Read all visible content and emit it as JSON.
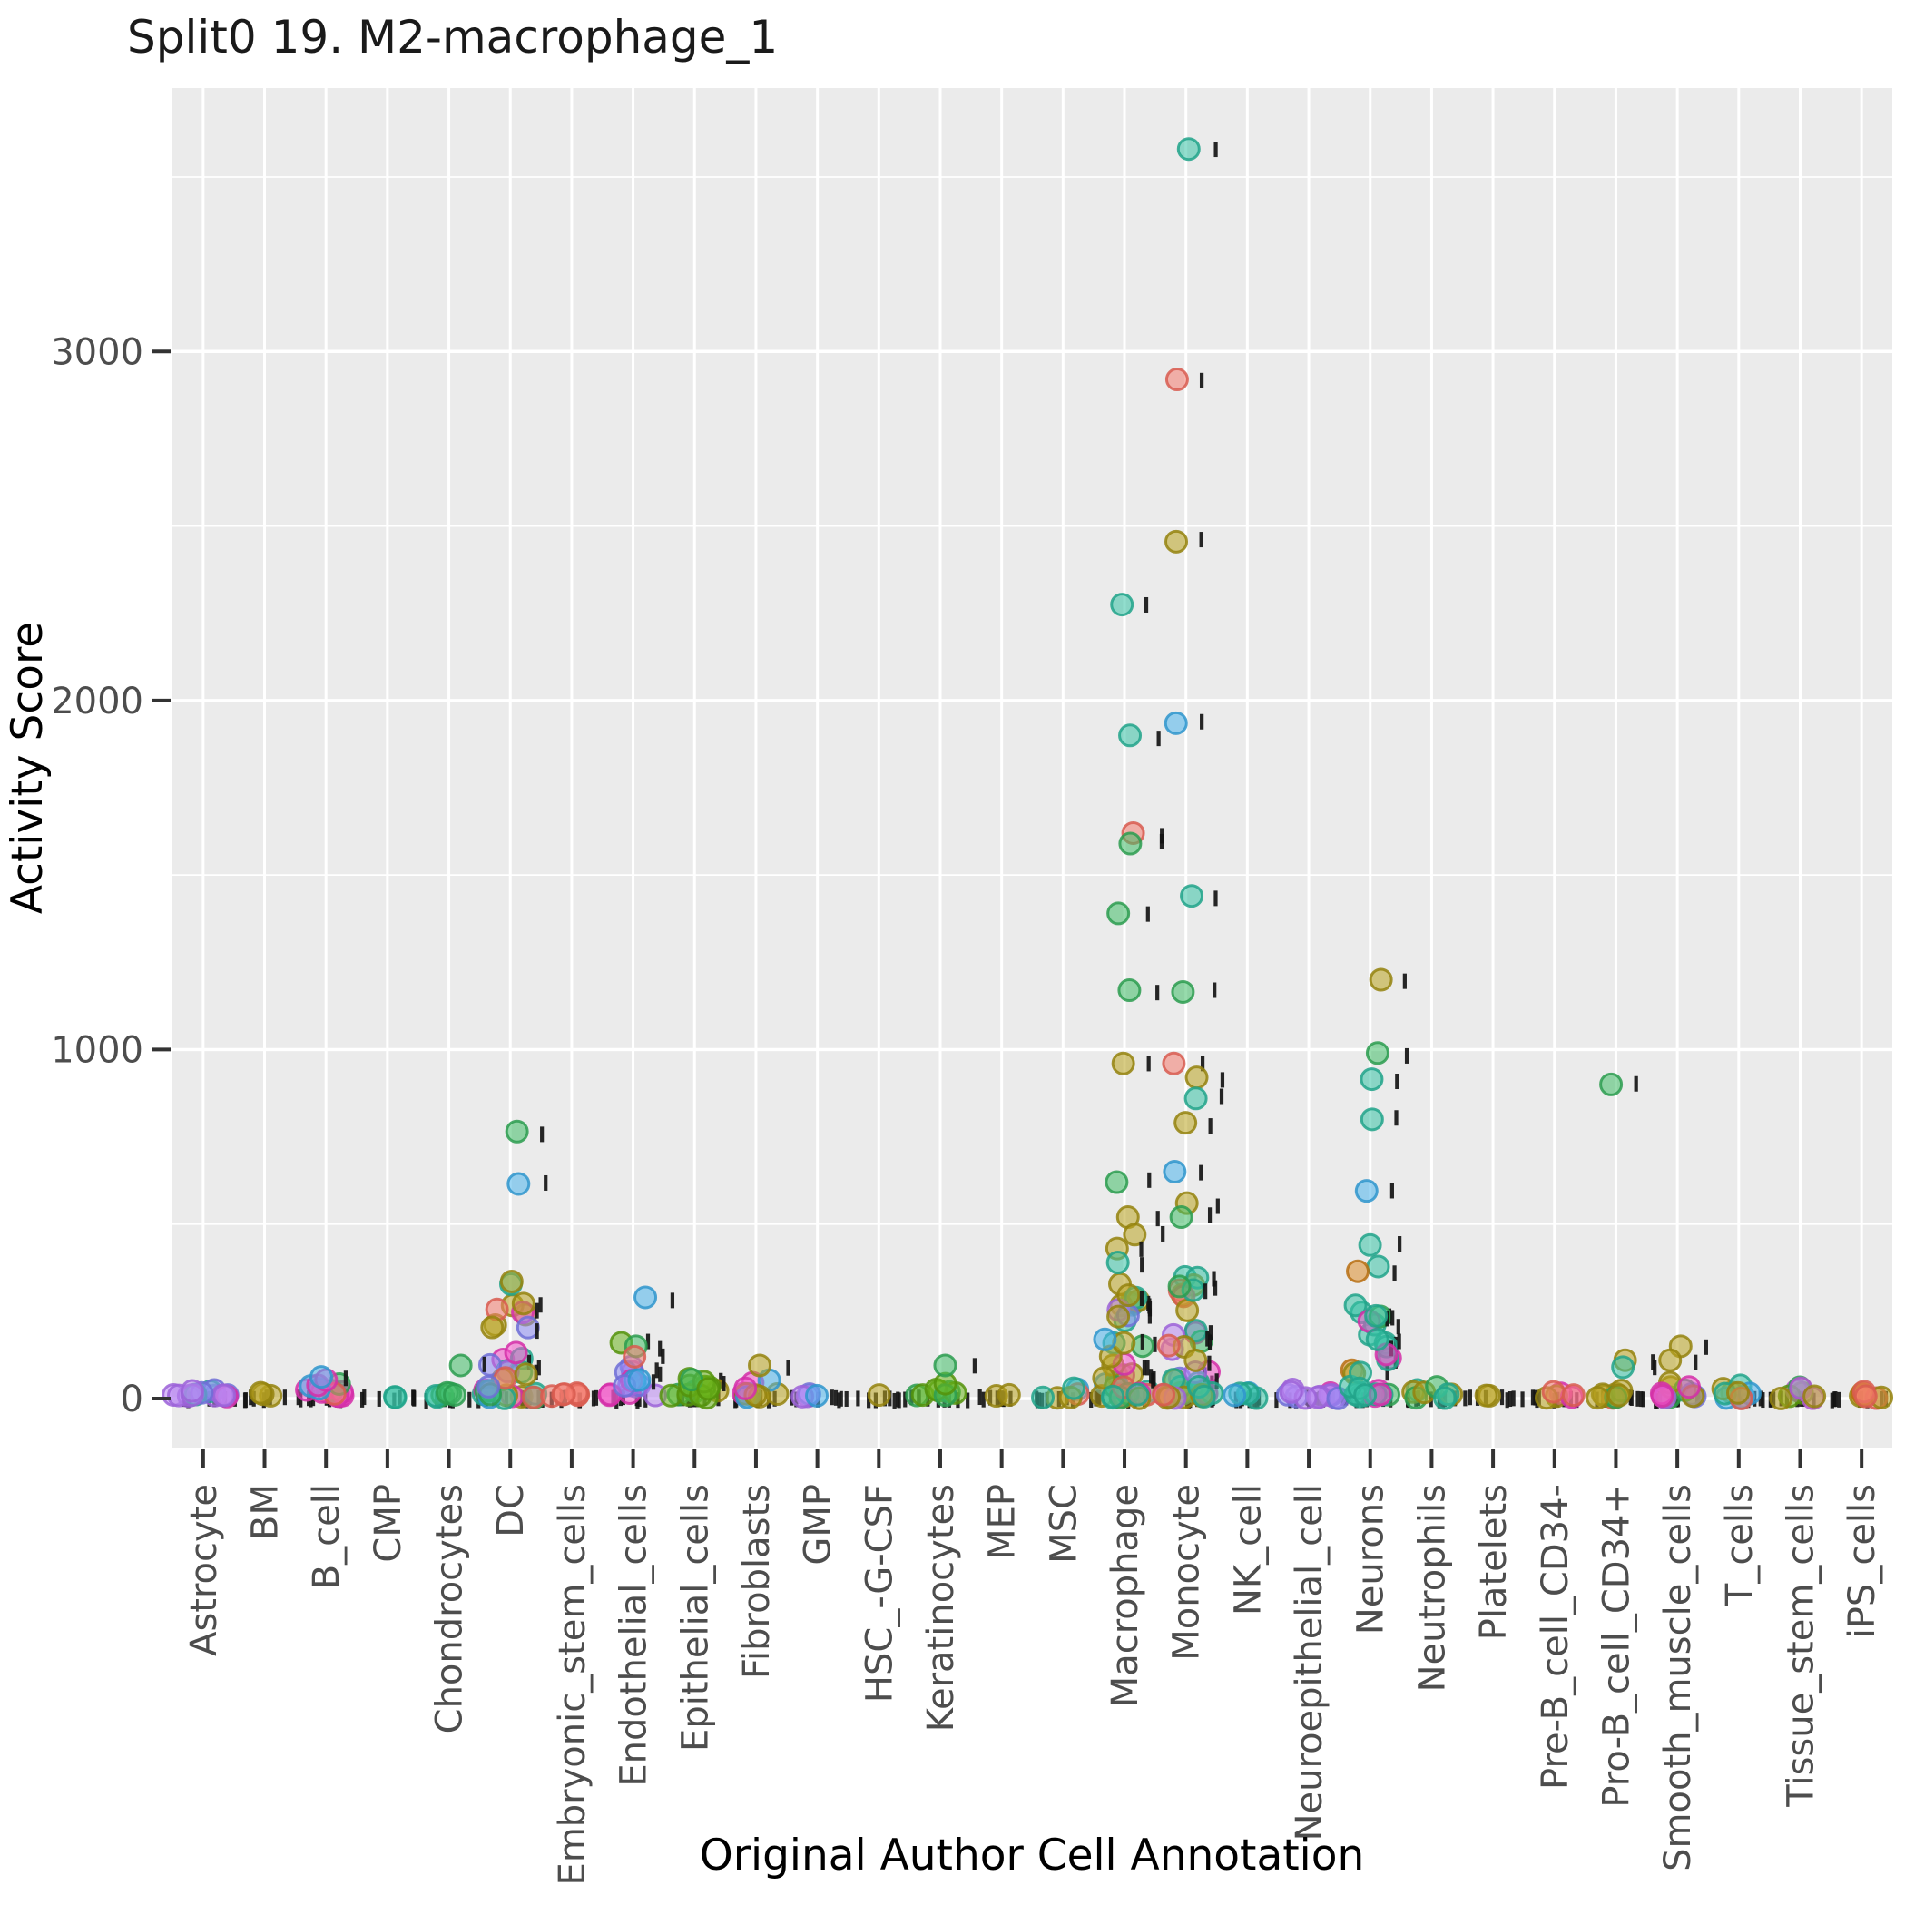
{
  "title": "Split0 19. M2-macrophage_1",
  "chart_data": {
    "type": "scatter",
    "title": "Split0 19. M2-macrophage_1",
    "xlabel": "Original Author Cell Annotation",
    "ylabel": "Activity Score",
    "ylim": [
      -140,
      3900
    ],
    "yticks": [
      0,
      1000,
      2000,
      3000
    ],
    "yminor": [
      500,
      1500,
      2500,
      3500
    ],
    "grid": "on",
    "panel_bg": "#EBEBEB",
    "grid_color": "#FFFFFF",
    "tick_color": "#333333",
    "label_color": "#4d4d4d",
    "mark_color": "#141414",
    "categories": [
      "Astrocyte",
      "BM",
      "B_cell",
      "CMP",
      "Chondrocytes",
      "DC",
      "Embryonic_stem_cells",
      "Endothelial_cells",
      "Epithelial_cells",
      "Fibroblasts",
      "GMP",
      "HSC_-G-CSF",
      "Keratinocytes",
      "MEP",
      "MSC",
      "Macrophage",
      "Monocyte",
      "NK_cell",
      "Neuroepithelial_cell",
      "Neurons",
      "Neutrophils",
      "Platelets",
      "Pre-B_cell_CD34-",
      "Pro-B_cell_CD34+",
      "Smooth_muscle_cells",
      "T_cells",
      "Tissue_stem_cells",
      "iPS_cells"
    ],
    "palette": {
      "salmon": {
        "fill": "#F47C70",
        "stroke": "#D85C50"
      },
      "orange": {
        "fill": "#DD8D29",
        "stroke": "#B76F12"
      },
      "olive": {
        "fill": "#B9A421",
        "stroke": "#94830E"
      },
      "yellowgreen": {
        "fill": "#6CB51D",
        "stroke": "#53920B"
      },
      "green": {
        "fill": "#41BD68",
        "stroke": "#2B9C4F"
      },
      "teal": {
        "fill": "#38C2A5",
        "stroke": "#21A389"
      },
      "cyan": {
        "fill": "#30BEC4",
        "stroke": "#1C9DA3"
      },
      "skyblue": {
        "fill": "#4DB5EC",
        "stroke": "#2F95CC"
      },
      "periwinkle": {
        "fill": "#8E8DF5",
        "stroke": "#6F6ED6"
      },
      "violet": {
        "fill": "#BA86F2",
        "stroke": "#9C63D8"
      },
      "orchid": {
        "fill": "#CF7BE8",
        "stroke": "#B057CC"
      },
      "magenta": {
        "fill": "#F353C8",
        "stroke": "#D42FA8"
      }
    },
    "clusters": [
      {
        "category": "Astrocyte",
        "n": 14,
        "max": 16,
        "spread": 40,
        "colors": {
          "violet": 10,
          "periwinkle": 2,
          "magenta": 1,
          "teal": 1
        }
      },
      {
        "category": "BM",
        "n": 3,
        "max": 10,
        "spread": 14,
        "colors": {
          "olive": 3
        }
      },
      {
        "category": "B_cell",
        "n": 14,
        "max": 45,
        "spread": 30,
        "colors": {
          "magenta": 6,
          "skyblue": 2,
          "green": 2,
          "yellowgreen": 2,
          "salmon": 1,
          "periwinkle": 1
        }
      },
      {
        "category": "CMP",
        "n": 2,
        "max": 8,
        "spread": 10,
        "colors": {
          "teal": 2
        }
      },
      {
        "category": "Chondrocytes",
        "n": 6,
        "max": 14,
        "spread": 24,
        "colors": {
          "olive": 2,
          "green": 2,
          "salmon": 1,
          "teal": 1
        }
      },
      {
        "category": "DC",
        "n": 34,
        "max": 340,
        "spread": 30,
        "colors": {
          "olive": 12,
          "teal": 6,
          "magenta": 5,
          "green": 3,
          "skyblue": 3,
          "periwinkle": 2,
          "salmon": 2,
          "violet": 1
        }
      },
      {
        "category": "Embryonic_stem_cells",
        "n": 6,
        "max": 12,
        "spread": 26,
        "colors": {
          "salmon": 4,
          "green": 1,
          "teal": 1
        }
      },
      {
        "category": "Endothelial_cells",
        "n": 14,
        "max": 100,
        "spread": 28,
        "colors": {
          "magenta": 4,
          "skyblue": 3,
          "green": 2,
          "yellowgreen": 1,
          "salmon": 1,
          "periwinkle": 2,
          "violet": 1
        }
      },
      {
        "category": "Epithelial_cells",
        "n": 14,
        "max": 55,
        "spread": 30,
        "colors": {
          "yellowgreen": 10,
          "green": 2,
          "olive": 2
        }
      },
      {
        "category": "Fibroblasts",
        "n": 10,
        "max": 60,
        "spread": 26,
        "colors": {
          "skyblue": 4,
          "olive": 3,
          "teal": 1,
          "magenta": 1,
          "green": 1
        }
      },
      {
        "category": "GMP",
        "n": 4,
        "max": 10,
        "spread": 18,
        "colors": {
          "violet": 2,
          "skyblue": 1,
          "periwinkle": 1
        }
      },
      {
        "category": "HSC_-G-CSF",
        "n": 1,
        "max": 6,
        "spread": 10,
        "colors": {
          "olive": 1
        }
      },
      {
        "category": "Keratinocytes",
        "n": 8,
        "max": 35,
        "spread": 26,
        "colors": {
          "yellowgreen": 6,
          "green": 2
        }
      },
      {
        "category": "MEP",
        "n": 2,
        "max": 8,
        "spread": 10,
        "colors": {
          "olive": 2
        }
      },
      {
        "category": "MSC",
        "n": 6,
        "max": 30,
        "spread": 24,
        "colors": {
          "teal": 2,
          "green": 1,
          "salmon": 1,
          "olive": 1,
          "skyblue": 1
        }
      },
      {
        "category": "Macrophage",
        "n": 40,
        "max": 345,
        "spread": 30,
        "colors": {
          "olive": 12,
          "teal": 8,
          "magenta": 6,
          "salmon": 4,
          "green": 4,
          "skyblue": 3,
          "periwinkle": 2,
          "violet": 1
        }
      },
      {
        "category": "Monocyte",
        "n": 40,
        "max": 345,
        "spread": 30,
        "colors": {
          "olive": 10,
          "teal": 8,
          "magenta": 6,
          "salmon": 5,
          "green": 3,
          "skyblue": 3,
          "violet": 3,
          "periwinkle": 2
        }
      },
      {
        "category": "NK_cell",
        "n": 5,
        "max": 20,
        "spread": 22,
        "colors": {
          "skyblue": 4,
          "teal": 1
        }
      },
      {
        "category": "Neuroepithelial_cell",
        "n": 12,
        "max": 20,
        "spread": 38,
        "colors": {
          "violet": 9,
          "periwinkle": 2,
          "magenta": 1
        }
      },
      {
        "category": "Neurons",
        "n": 30,
        "max": 460,
        "spread": 26,
        "colors": {
          "teal": 18,
          "magenta": 5,
          "green": 4,
          "skyblue": 1,
          "orange": 1,
          "olive": 1
        }
      },
      {
        "category": "Neutrophils",
        "n": 8,
        "max": 25,
        "spread": 26,
        "colors": {
          "olive": 4,
          "teal": 2,
          "green": 2
        }
      },
      {
        "category": "Platelets",
        "n": 2,
        "max": 10,
        "spread": 12,
        "colors": {
          "olive": 2
        }
      },
      {
        "category": "Pre-B_cell_CD34-",
        "n": 6,
        "max": 25,
        "spread": 24,
        "colors": {
          "olive": 2,
          "skyblue": 1,
          "magenta": 1,
          "violet": 1,
          "salmon": 1
        }
      },
      {
        "category": "Pro-B_cell_CD34+",
        "n": 10,
        "max": 28,
        "spread": 26,
        "colors": {
          "olive": 7,
          "teal": 1,
          "green": 1,
          "salmon": 1
        }
      },
      {
        "category": "Smooth_muscle_cells",
        "n": 12,
        "max": 45,
        "spread": 26,
        "colors": {
          "olive": 5,
          "magenta": 2,
          "periwinkle": 1,
          "teal": 1,
          "orange": 1,
          "green": 1,
          "violet": 1
        }
      },
      {
        "category": "T_cells",
        "n": 10,
        "max": 40,
        "spread": 26,
        "colors": {
          "skyblue": 6,
          "teal": 1,
          "salmon": 1,
          "olive": 2
        }
      },
      {
        "category": "Tissue_stem_cells",
        "n": 8,
        "max": 28,
        "spread": 26,
        "colors": {
          "olive": 3,
          "orchid": 2,
          "green": 2,
          "yellowgreen": 1
        }
      },
      {
        "category": "iPS_cells",
        "n": 7,
        "max": 14,
        "spread": 26,
        "colors": {
          "olive": 3,
          "salmon": 3,
          "orange": 1
        }
      }
    ],
    "outliers": [
      {
        "category": "B_cell",
        "value": 62,
        "color": "skyblue"
      },
      {
        "category": "Chondrocytes",
        "value": 95,
        "color": "green"
      },
      {
        "category": "DC",
        "value": 765,
        "color": "green"
      },
      {
        "category": "DC",
        "value": 615,
        "color": "skyblue"
      },
      {
        "category": "Endothelial_cells",
        "value": 290,
        "color": "skyblue"
      },
      {
        "category": "Endothelial_cells",
        "value": 160,
        "color": "yellowgreen"
      },
      {
        "category": "Endothelial_cells",
        "value": 150,
        "color": "green"
      },
      {
        "category": "Endothelial_cells",
        "value": 120,
        "color": "salmon"
      },
      {
        "category": "Fibroblasts",
        "value": 95,
        "color": "olive"
      },
      {
        "category": "Keratinocytes",
        "value": 95,
        "color": "green"
      },
      {
        "category": "Macrophage",
        "value": 2275,
        "color": "teal"
      },
      {
        "category": "Macrophage",
        "value": 1900,
        "color": "teal"
      },
      {
        "category": "Macrophage",
        "value": 1620,
        "color": "salmon"
      },
      {
        "category": "Macrophage",
        "value": 1590,
        "color": "green"
      },
      {
        "category": "Macrophage",
        "value": 1390,
        "color": "green"
      },
      {
        "category": "Macrophage",
        "value": 1170,
        "color": "green"
      },
      {
        "category": "Macrophage",
        "value": 960,
        "color": "olive"
      },
      {
        "category": "Macrophage",
        "value": 620,
        "color": "green"
      },
      {
        "category": "Macrophage",
        "value": 520,
        "color": "olive"
      },
      {
        "category": "Macrophage",
        "value": 470,
        "color": "olive"
      },
      {
        "category": "Macrophage",
        "value": 430,
        "color": "olive"
      },
      {
        "category": "Macrophage",
        "value": 390,
        "color": "teal"
      },
      {
        "category": "Monocyte",
        "value": 3580,
        "color": "teal"
      },
      {
        "category": "Monocyte",
        "value": 2920,
        "color": "salmon"
      },
      {
        "category": "Monocyte",
        "value": 2455,
        "color": "olive"
      },
      {
        "category": "Monocyte",
        "value": 1935,
        "color": "skyblue"
      },
      {
        "category": "Monocyte",
        "value": 1440,
        "color": "teal"
      },
      {
        "category": "Monocyte",
        "value": 1165,
        "color": "green"
      },
      {
        "category": "Monocyte",
        "value": 960,
        "color": "salmon"
      },
      {
        "category": "Monocyte",
        "value": 920,
        "color": "olive"
      },
      {
        "category": "Monocyte",
        "value": 860,
        "color": "teal"
      },
      {
        "category": "Monocyte",
        "value": 790,
        "color": "olive"
      },
      {
        "category": "Monocyte",
        "value": 650,
        "color": "skyblue"
      },
      {
        "category": "Monocyte",
        "value": 560,
        "color": "olive"
      },
      {
        "category": "Monocyte",
        "value": 520,
        "color": "green"
      },
      {
        "category": "Neurons",
        "value": 1200,
        "color": "olive"
      },
      {
        "category": "Neurons",
        "value": 990,
        "color": "green"
      },
      {
        "category": "Neurons",
        "value": 915,
        "color": "teal"
      },
      {
        "category": "Neurons",
        "value": 800,
        "color": "teal"
      },
      {
        "category": "Neurons",
        "value": 595,
        "color": "skyblue"
      },
      {
        "category": "Neurons",
        "value": 440,
        "color": "teal"
      },
      {
        "category": "Pro-B_cell_CD34+",
        "value": 900,
        "color": "green"
      },
      {
        "category": "Pro-B_cell_CD34+",
        "value": 110,
        "color": "olive"
      },
      {
        "category": "Pro-B_cell_CD34+",
        "value": 90,
        "color": "teal"
      },
      {
        "category": "Smooth_muscle_cells",
        "value": 150,
        "color": "olive"
      },
      {
        "category": "Smooth_muscle_cells",
        "value": 110,
        "color": "olive"
      }
    ]
  }
}
